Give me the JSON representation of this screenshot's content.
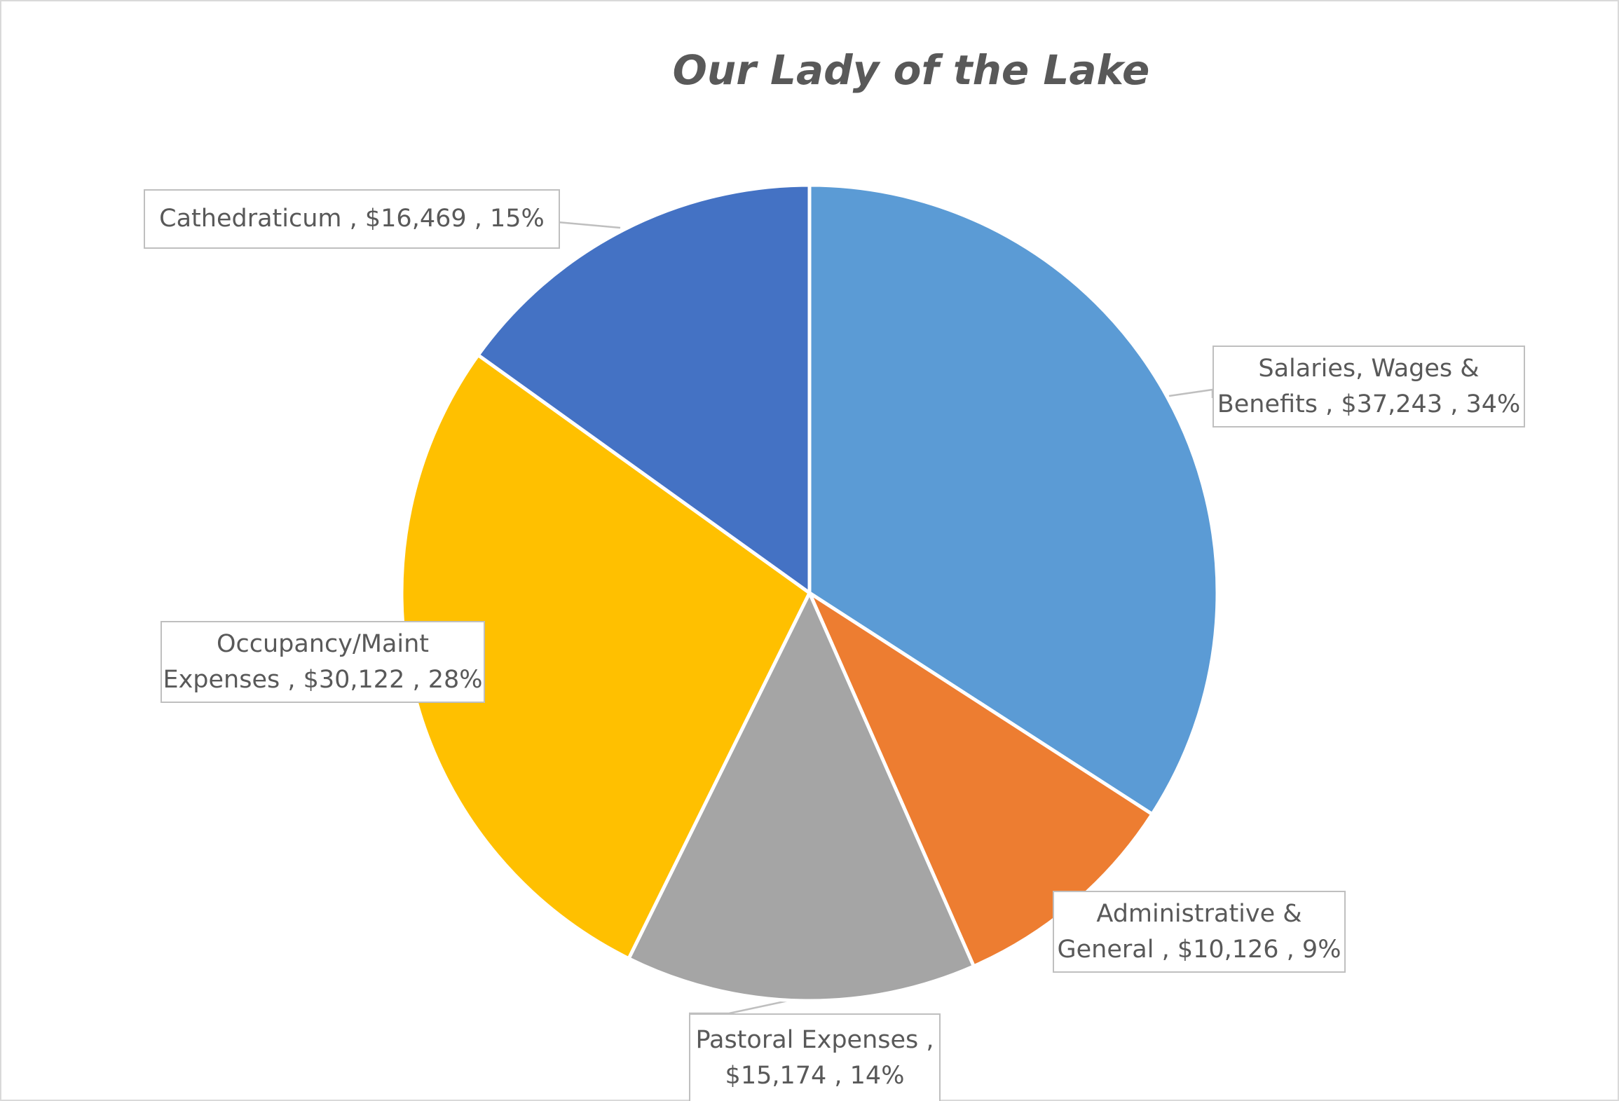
{
  "chart_data": {
    "type": "pie",
    "title": "Our Lady of the Lake",
    "slices": [
      {
        "label": "Salaries, Wages & Benefits",
        "value": 37243,
        "value_text": "$37,243",
        "percent": "34%",
        "color": "#5b9bd5"
      },
      {
        "label": "Administrative & General",
        "value": 10126,
        "value_text": "$10,126",
        "percent": "9%",
        "color": "#ed7d31"
      },
      {
        "label": "Pastoral Expenses",
        "value": 15174,
        "value_text": "$15,174",
        "percent": "14%",
        "color": "#a5a5a5"
      },
      {
        "label": "Occupancy/Maint Expenses",
        "value": 30122,
        "value_text": "$30,122",
        "percent": "28%",
        "color": "#ffc000"
      },
      {
        "label": "Cathedraticum",
        "value": 16469,
        "value_text": "$16,469",
        "percent": "15%",
        "color": "#4472c4"
      }
    ]
  },
  "callouts": {
    "salaries": {
      "line1": "Salaries, Wages &",
      "line2": "Benefits ,  $37,243 , 34%"
    },
    "admin": {
      "line1": "Administrative &",
      "line2": "General ,  $10,126 , 9%"
    },
    "pastoral": {
      "line1": "Pastoral Expenses ,",
      "line2": "$15,174 , 14%"
    },
    "occupancy": {
      "line1": "Occupancy/Maint",
      "line2": "Expenses ,  $30,122 , 28%"
    },
    "cathedraticum": {
      "line1": "Cathedraticum ,  $16,469 , 15%"
    }
  }
}
